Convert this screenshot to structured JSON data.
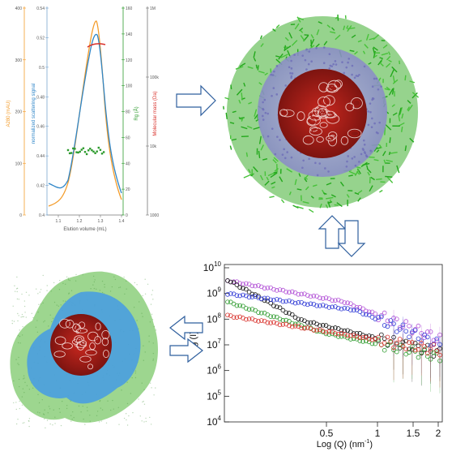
{
  "sec_plot": {
    "left_axis_orange": {
      "label": "A280 (mAU)",
      "ticks": [
        "0",
        "100",
        "200",
        "300",
        "400"
      ]
    },
    "left_axis_blue": {
      "label": "normalized scattering signal",
      "ticks": [
        "0.4",
        "0.42",
        "0.44",
        "0.46",
        "0.48",
        "0.5",
        "0.52",
        "0.54"
      ]
    },
    "right_axis_green": {
      "label": "Rg (Å)",
      "ticks": [
        "0",
        "20",
        "40",
        "60",
        "80",
        "100",
        "120",
        "140",
        "160"
      ]
    },
    "right_axis_red": {
      "label": "Molecular mass (Da)",
      "ticks": [
        "1000",
        "10k",
        "100k",
        "1M"
      ]
    },
    "x_axis": {
      "label": "Elution volume (mL)",
      "ticks": [
        "1.1",
        "1.2",
        "1.3",
        "1.4"
      ]
    },
    "colors": {
      "orange": "#f39c2b",
      "blue": "#2f86c8",
      "green": "#2e9b2e",
      "red": "#d9312b"
    }
  },
  "saxs_plot": {
    "y_label": "Log (I)",
    "x_label": "Log (Q) (nm",
    "x_label_sup": "-1",
    "x_label_end": ")",
    "y_ticks": [
      {
        "base": "10",
        "exp": "10"
      },
      {
        "base": "10",
        "exp": "9"
      },
      {
        "base": "10",
        "exp": "8"
      },
      {
        "base": "10",
        "exp": "7"
      },
      {
        "base": "10",
        "exp": "6"
      },
      {
        "base": "10",
        "exp": "5"
      },
      {
        "base": "10",
        "exp": "4"
      }
    ],
    "x_ticks": [
      "0.5",
      "1",
      "1.5",
      "2"
    ],
    "series_colors": [
      "#b14fd6",
      "#111111",
      "#2f3ad6",
      "#2e9b2e",
      "#d9312b"
    ]
  },
  "arrows": {
    "right": "arrow-right",
    "left": "arrow-left",
    "up": "arrow-up",
    "down": "arrow-down",
    "outline_color": "#2f5f9e"
  },
  "molecule_illustrations": {
    "top": "micelle-atomistic-model-image",
    "bottom": "low-resolution-envelope-model-image"
  }
}
